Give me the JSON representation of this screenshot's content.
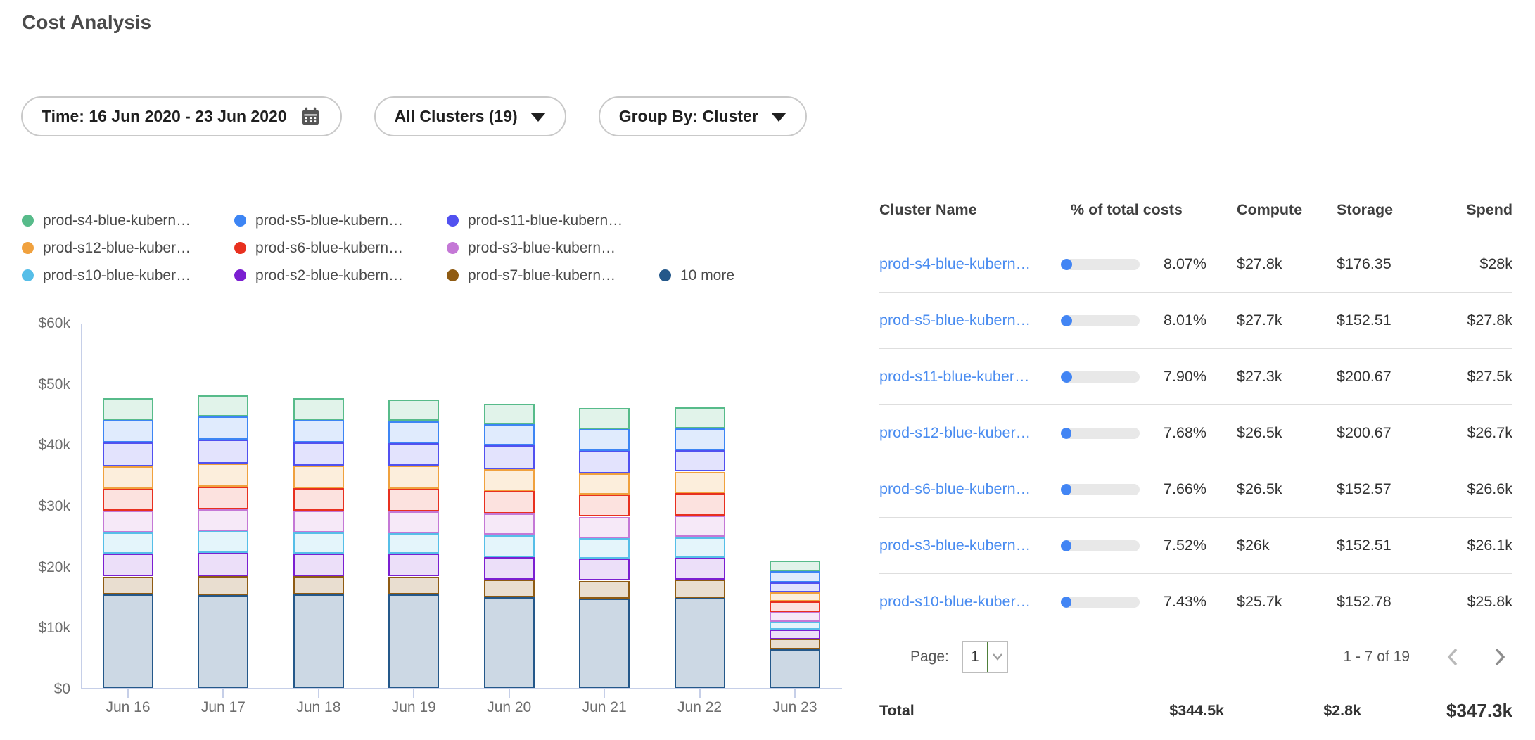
{
  "page": {
    "title": "Cost Analysis"
  },
  "filters": {
    "time_range": {
      "label": "Time: 16 Jun 2020 - 23 Jun 2020"
    },
    "clusters": {
      "label": "All Clusters (19)"
    },
    "group_by": {
      "label": "Group By: Cluster"
    }
  },
  "chart_data": {
    "type": "bar",
    "stacked": true,
    "title": "",
    "xlabel": "",
    "ylabel": "",
    "unit": "USD",
    "grid": false,
    "legend_position": "top-left",
    "ylim": [
      0,
      60000
    ],
    "y_ticks": [
      "$0",
      "$10k",
      "$20k",
      "$30k",
      "$40k",
      "$50k",
      "$60k"
    ],
    "categories": [
      "Jun 16",
      "Jun 17",
      "Jun 18",
      "Jun 19",
      "Jun 20",
      "Jun 21",
      "Jun 22",
      "Jun 23"
    ],
    "series": [
      {
        "name": "prod-s4-blue-kubern…",
        "color": "#57bb8a",
        "fill": "rgba(87,187,138,0.18)",
        "values": [
          3600,
          3500,
          3600,
          3500,
          3300,
          3500,
          3500,
          1700
        ]
      },
      {
        "name": "prod-s5-blue-kubern…",
        "color": "#3d85f4",
        "fill": "rgba(61,133,244,0.16)",
        "values": [
          3700,
          3800,
          3700,
          3600,
          3500,
          3600,
          3600,
          1800
        ]
      },
      {
        "name": "prod-s11-blue-kubern…",
        "color": "#5151f0",
        "fill": "rgba(81,81,240,0.16)",
        "values": [
          3900,
          3900,
          3800,
          3700,
          3900,
          3700,
          3500,
          1600
        ]
      },
      {
        "name": "prod-s12-blue-kuber…",
        "color": "#f0a13e",
        "fill": "rgba(240,161,62,0.18)",
        "values": [
          3700,
          3800,
          3700,
          3800,
          3600,
          3500,
          3500,
          1500
        ]
      },
      {
        "name": "prod-s6-blue-kubern…",
        "color": "#e8301f",
        "fill": "rgba(232,48,31,0.14)",
        "values": [
          3600,
          3700,
          3700,
          3700,
          3700,
          3600,
          3700,
          1700
        ]
      },
      {
        "name": "prod-s3-blue-kubern…",
        "color": "#c478d6",
        "fill": "rgba(196,120,214,0.16)",
        "values": [
          3600,
          3600,
          3600,
          3600,
          3500,
          3500,
          3500,
          1600
        ]
      },
      {
        "name": "prod-s10-blue-kuber…",
        "color": "#56bee8",
        "fill": "rgba(86,190,232,0.16)",
        "values": [
          3500,
          3600,
          3500,
          3400,
          3600,
          3400,
          3400,
          1300
        ]
      },
      {
        "name": "prod-s2-blue-kubern…",
        "color": "#7b1fd1",
        "fill": "rgba(123,31,209,0.14)",
        "values": [
          3700,
          3800,
          3700,
          3700,
          3700,
          3600,
          3600,
          1600
        ]
      },
      {
        "name": "prod-s7-blue-kubern…",
        "color": "#8f5b13",
        "fill": "rgba(143,91,19,0.20)",
        "values": [
          2900,
          3100,
          3000,
          2900,
          2900,
          2900,
          3000,
          1700
        ]
      },
      {
        "name": "10 more",
        "color": "#24588a",
        "fill": "rgba(36,88,138,0.23)",
        "values": [
          15400,
          15200,
          15300,
          15400,
          14900,
          14700,
          14800,
          6300
        ]
      }
    ],
    "legend_layout": [
      [
        0,
        1,
        2
      ],
      [
        3,
        4,
        5
      ],
      [
        6,
        7,
        8,
        9
      ]
    ]
  },
  "table": {
    "columns": [
      "Cluster Name",
      "% of total costs",
      "Compute",
      "Storage",
      "Spend"
    ],
    "rows": [
      {
        "name": "prod-s4-blue-kubern…",
        "pct": "8.07%",
        "pct_value": 8.07,
        "compute": "$27.8k",
        "storage": "$176.35",
        "spend": "$28k"
      },
      {
        "name": "prod-s5-blue-kubern…",
        "pct": "8.01%",
        "pct_value": 8.01,
        "compute": "$27.7k",
        "storage": "$152.51",
        "spend": "$27.8k"
      },
      {
        "name": "prod-s11-blue-kuber…",
        "pct": "7.90%",
        "pct_value": 7.9,
        "compute": "$27.3k",
        "storage": "$200.67",
        "spend": "$27.5k"
      },
      {
        "name": "prod-s12-blue-kuber…",
        "pct": "7.68%",
        "pct_value": 7.68,
        "compute": "$26.5k",
        "storage": "$200.67",
        "spend": "$26.7k"
      },
      {
        "name": "prod-s6-blue-kubern…",
        "pct": "7.66%",
        "pct_value": 7.66,
        "compute": "$26.5k",
        "storage": "$152.57",
        "spend": "$26.6k"
      },
      {
        "name": "prod-s3-blue-kubern…",
        "pct": "7.52%",
        "pct_value": 7.52,
        "compute": "$26k",
        "storage": "$152.51",
        "spend": "$26.1k"
      },
      {
        "name": "prod-s10-blue-kuber…",
        "pct": "7.43%",
        "pct_value": 7.43,
        "compute": "$25.7k",
        "storage": "$152.78",
        "spend": "$25.8k"
      }
    ],
    "pagination": {
      "page_label": "Page:",
      "page": "1",
      "range": "1 - 7 of 19"
    },
    "total": {
      "label": "Total",
      "compute": "$344.5k",
      "storage": "$2.8k",
      "spend": "$347.3k"
    }
  },
  "colors": {
    "link": "#4a8cf0",
    "progress_fill": "#4285f4",
    "progress_track": "#e8e8e8",
    "axis": "#c6cfe8",
    "select_divider_green": "#4e7f3a"
  }
}
